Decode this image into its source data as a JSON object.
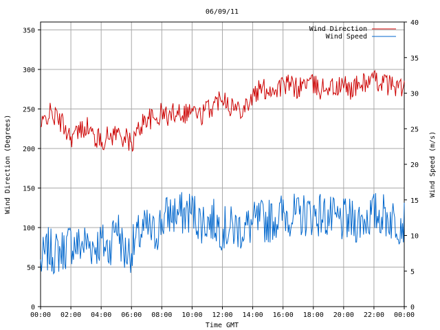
{
  "chart_data": {
    "type": "line",
    "title": "06/09/11",
    "xlabel": "Time GMT",
    "ylabel_left": "Wind Direction (Degrees)",
    "ylabel_right": "Wind Speed (m/s)",
    "x_ticks": [
      "00:00",
      "02:00",
      "04:00",
      "06:00",
      "08:00",
      "10:00",
      "12:00",
      "14:00",
      "16:00",
      "18:00",
      "20:00",
      "22:00",
      "00:00"
    ],
    "y_left_ticks": [
      "0",
      "50",
      "100",
      "150",
      "200",
      "250",
      "300",
      "350"
    ],
    "y_right_ticks": [
      "0",
      "5",
      "10",
      "15",
      "20",
      "25",
      "30",
      "35",
      "40"
    ],
    "ylim_left": [
      0,
      360
    ],
    "ylim_right": [
      0,
      40
    ],
    "xlim_hours": [
      0,
      24
    ],
    "grid": true,
    "legend_position": "top-right",
    "colors": {
      "direction": "#cc0000",
      "speed": "#0066cc"
    },
    "series": [
      {
        "name": "Wind Direction",
        "axis": "left",
        "x_hours": [
          0,
          0.5,
          1,
          1.5,
          2,
          2.5,
          3,
          3.5,
          4,
          4.5,
          5,
          5.5,
          6,
          6.5,
          7,
          7.5,
          8,
          8.5,
          9,
          9.5,
          10,
          10.5,
          11,
          11.5,
          12,
          12.5,
          13,
          13.5,
          14,
          14.5,
          15,
          15.5,
          16,
          16.5,
          17,
          17.5,
          18,
          18.5,
          19,
          19.5,
          20,
          20.5,
          21,
          21.5,
          22,
          22.5,
          23,
          23.5,
          24
        ],
        "values": [
          225,
          245,
          240,
          230,
          215,
          220,
          230,
          215,
          210,
          215,
          220,
          215,
          205,
          225,
          240,
          235,
          245,
          240,
          250,
          245,
          250,
          240,
          250,
          255,
          270,
          255,
          250,
          255,
          265,
          275,
          275,
          275,
          280,
          280,
          275,
          285,
          280,
          275,
          280,
          275,
          280,
          275,
          280,
          285,
          285,
          285,
          280,
          280,
          275
        ]
      },
      {
        "name": "Wind Speed",
        "axis": "right",
        "x_hours": [
          0,
          0.5,
          1,
          1.5,
          2,
          2.5,
          3,
          3.5,
          4,
          4.5,
          5,
          5.5,
          6,
          6.5,
          7,
          7.5,
          8,
          8.5,
          9,
          9.5,
          10,
          10.5,
          11,
          11.5,
          12,
          12.5,
          13,
          13.5,
          14,
          14.5,
          15,
          15.5,
          16,
          16.5,
          17,
          17.5,
          18,
          18.5,
          19,
          19.5,
          20,
          20.5,
          21,
          21.5,
          22,
          22.5,
          23,
          23.5,
          24
        ],
        "values": [
          6,
          8,
          7.5,
          8,
          9,
          8.5,
          9,
          8.5,
          9,
          8,
          12,
          7.5,
          8,
          10,
          11,
          10,
          12,
          13,
          13,
          13,
          13.5,
          12,
          12,
          12,
          11,
          11,
          11,
          11,
          11.5,
          12,
          12,
          12.5,
          13,
          13,
          12.5,
          13,
          13,
          13,
          12.5,
          12,
          12,
          12,
          12,
          12.5,
          13,
          13,
          12.5,
          12,
          12
        ]
      }
    ]
  }
}
